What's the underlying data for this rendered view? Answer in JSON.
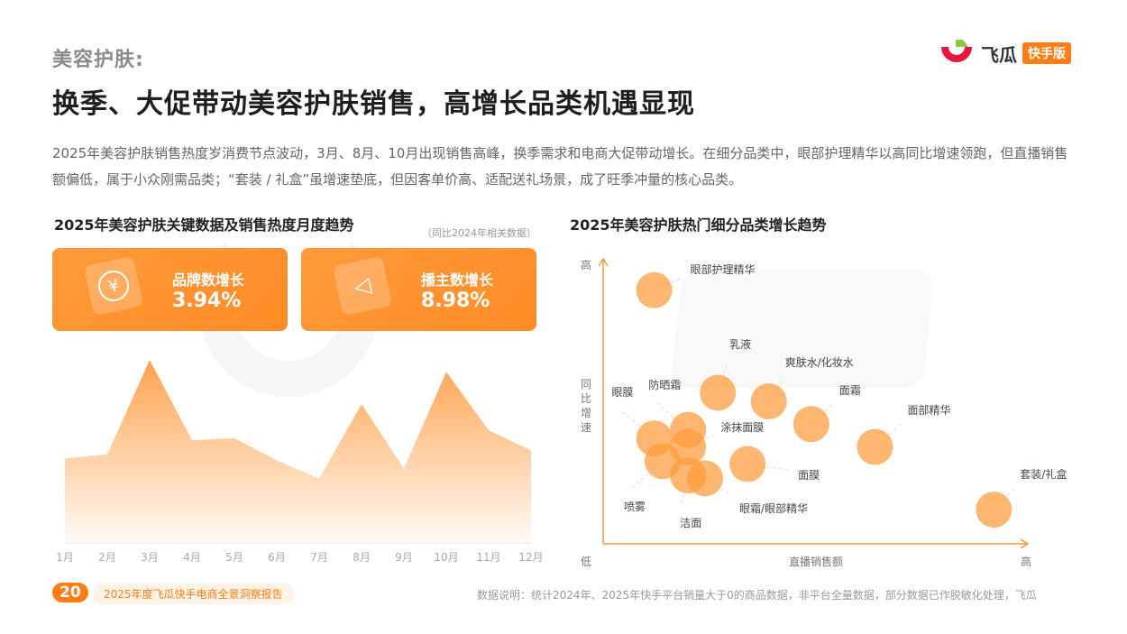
{
  "header": {
    "section": "美容护肤:",
    "title": "换季、大促带动美容护肤销售，高增长品类机遇显现",
    "description": "2025年美容护肤销售热度岁消费节点波动，3月、8月、10月出现销售高峰，换季需求和电商大促带动增长。在细分品类中，眼部护理精华以高同比增速领跑，但直播销售额偏低，属于小众刚需品类；“套装 / 礼盒”虽增速垫底，但因客单价高、适配送礼场景，成了旺季冲量的核心品类。"
  },
  "logo": {
    "name": "飞瓜",
    "badge": "快手版",
    "colors": {
      "red": "#e8163c",
      "green": "#8dc63f",
      "orange": "#ff7d12"
    }
  },
  "watermark": {
    "text": "飞瓜",
    "badge": "快手版"
  },
  "left": {
    "title": "2025年美容护肤关键数据及销售热度月度趋势",
    "note": "（同比2024年相关数据）",
    "cards": [
      {
        "label": "品牌数增长",
        "value": "3.94%",
        "icon": "yuan-coin-icon"
      },
      {
        "label": "播主数增长",
        "value": "8.98%",
        "icon": "megaphone-icon"
      }
    ]
  },
  "right": {
    "title": "2025年美容护肤热门细分品类增长趋势"
  },
  "chart_data": [
    {
      "type": "area",
      "categories": [
        "1月",
        "2月",
        "3月",
        "4月",
        "5月",
        "6月",
        "7月",
        "8月",
        "9月",
        "10月",
        "11月",
        "12月"
      ],
      "values": [
        42,
        44,
        91,
        51,
        52,
        41,
        32,
        69,
        37,
        85,
        56,
        46
      ],
      "ylim": [
        0,
        100
      ],
      "grid": false,
      "color": "#ffa24d"
    },
    {
      "type": "scatter",
      "xlabel": "直播销售额",
      "ylabel": "同比增速",
      "x_low": "低",
      "x_high": "高",
      "y_high": "高",
      "xlim": [
        0,
        100
      ],
      "ylim": [
        0,
        100
      ],
      "color": "#ffa24d",
      "points": [
        {
          "name": "眼部护理精华",
          "x": 12,
          "y": 89
        },
        {
          "name": "乳液",
          "x": 27,
          "y": 53
        },
        {
          "name": "爽肤水/化妆水",
          "x": 39,
          "y": 50
        },
        {
          "name": "面霜",
          "x": 49,
          "y": 42
        },
        {
          "name": "面部精华",
          "x": 64,
          "y": 34
        },
        {
          "name": "套装/礼盒",
          "x": 92,
          "y": 12
        },
        {
          "name": "眼膜",
          "x": 12,
          "y": 37
        },
        {
          "name": "防晒霜",
          "x": 20,
          "y": 40
        },
        {
          "name": "涂抹面膜",
          "x": 20,
          "y": 34
        },
        {
          "name": "喷雾",
          "x": 14,
          "y": 29
        },
        {
          "name": "洁面",
          "x": 20,
          "y": 24
        },
        {
          "name": "眼霜/眼部精华",
          "x": 24,
          "y": 23
        },
        {
          "name": "面膜",
          "x": 34,
          "y": 28
        }
      ]
    }
  ],
  "footer": {
    "page": "20",
    "report": "2025年度飞瓜快手电商全景洞察报告",
    "note": "数据说明：统计2024年、2025年快手平台销量大于0的商品数据，非平台全量数据，部分数据已作脱敏化处理，飞瓜"
  }
}
